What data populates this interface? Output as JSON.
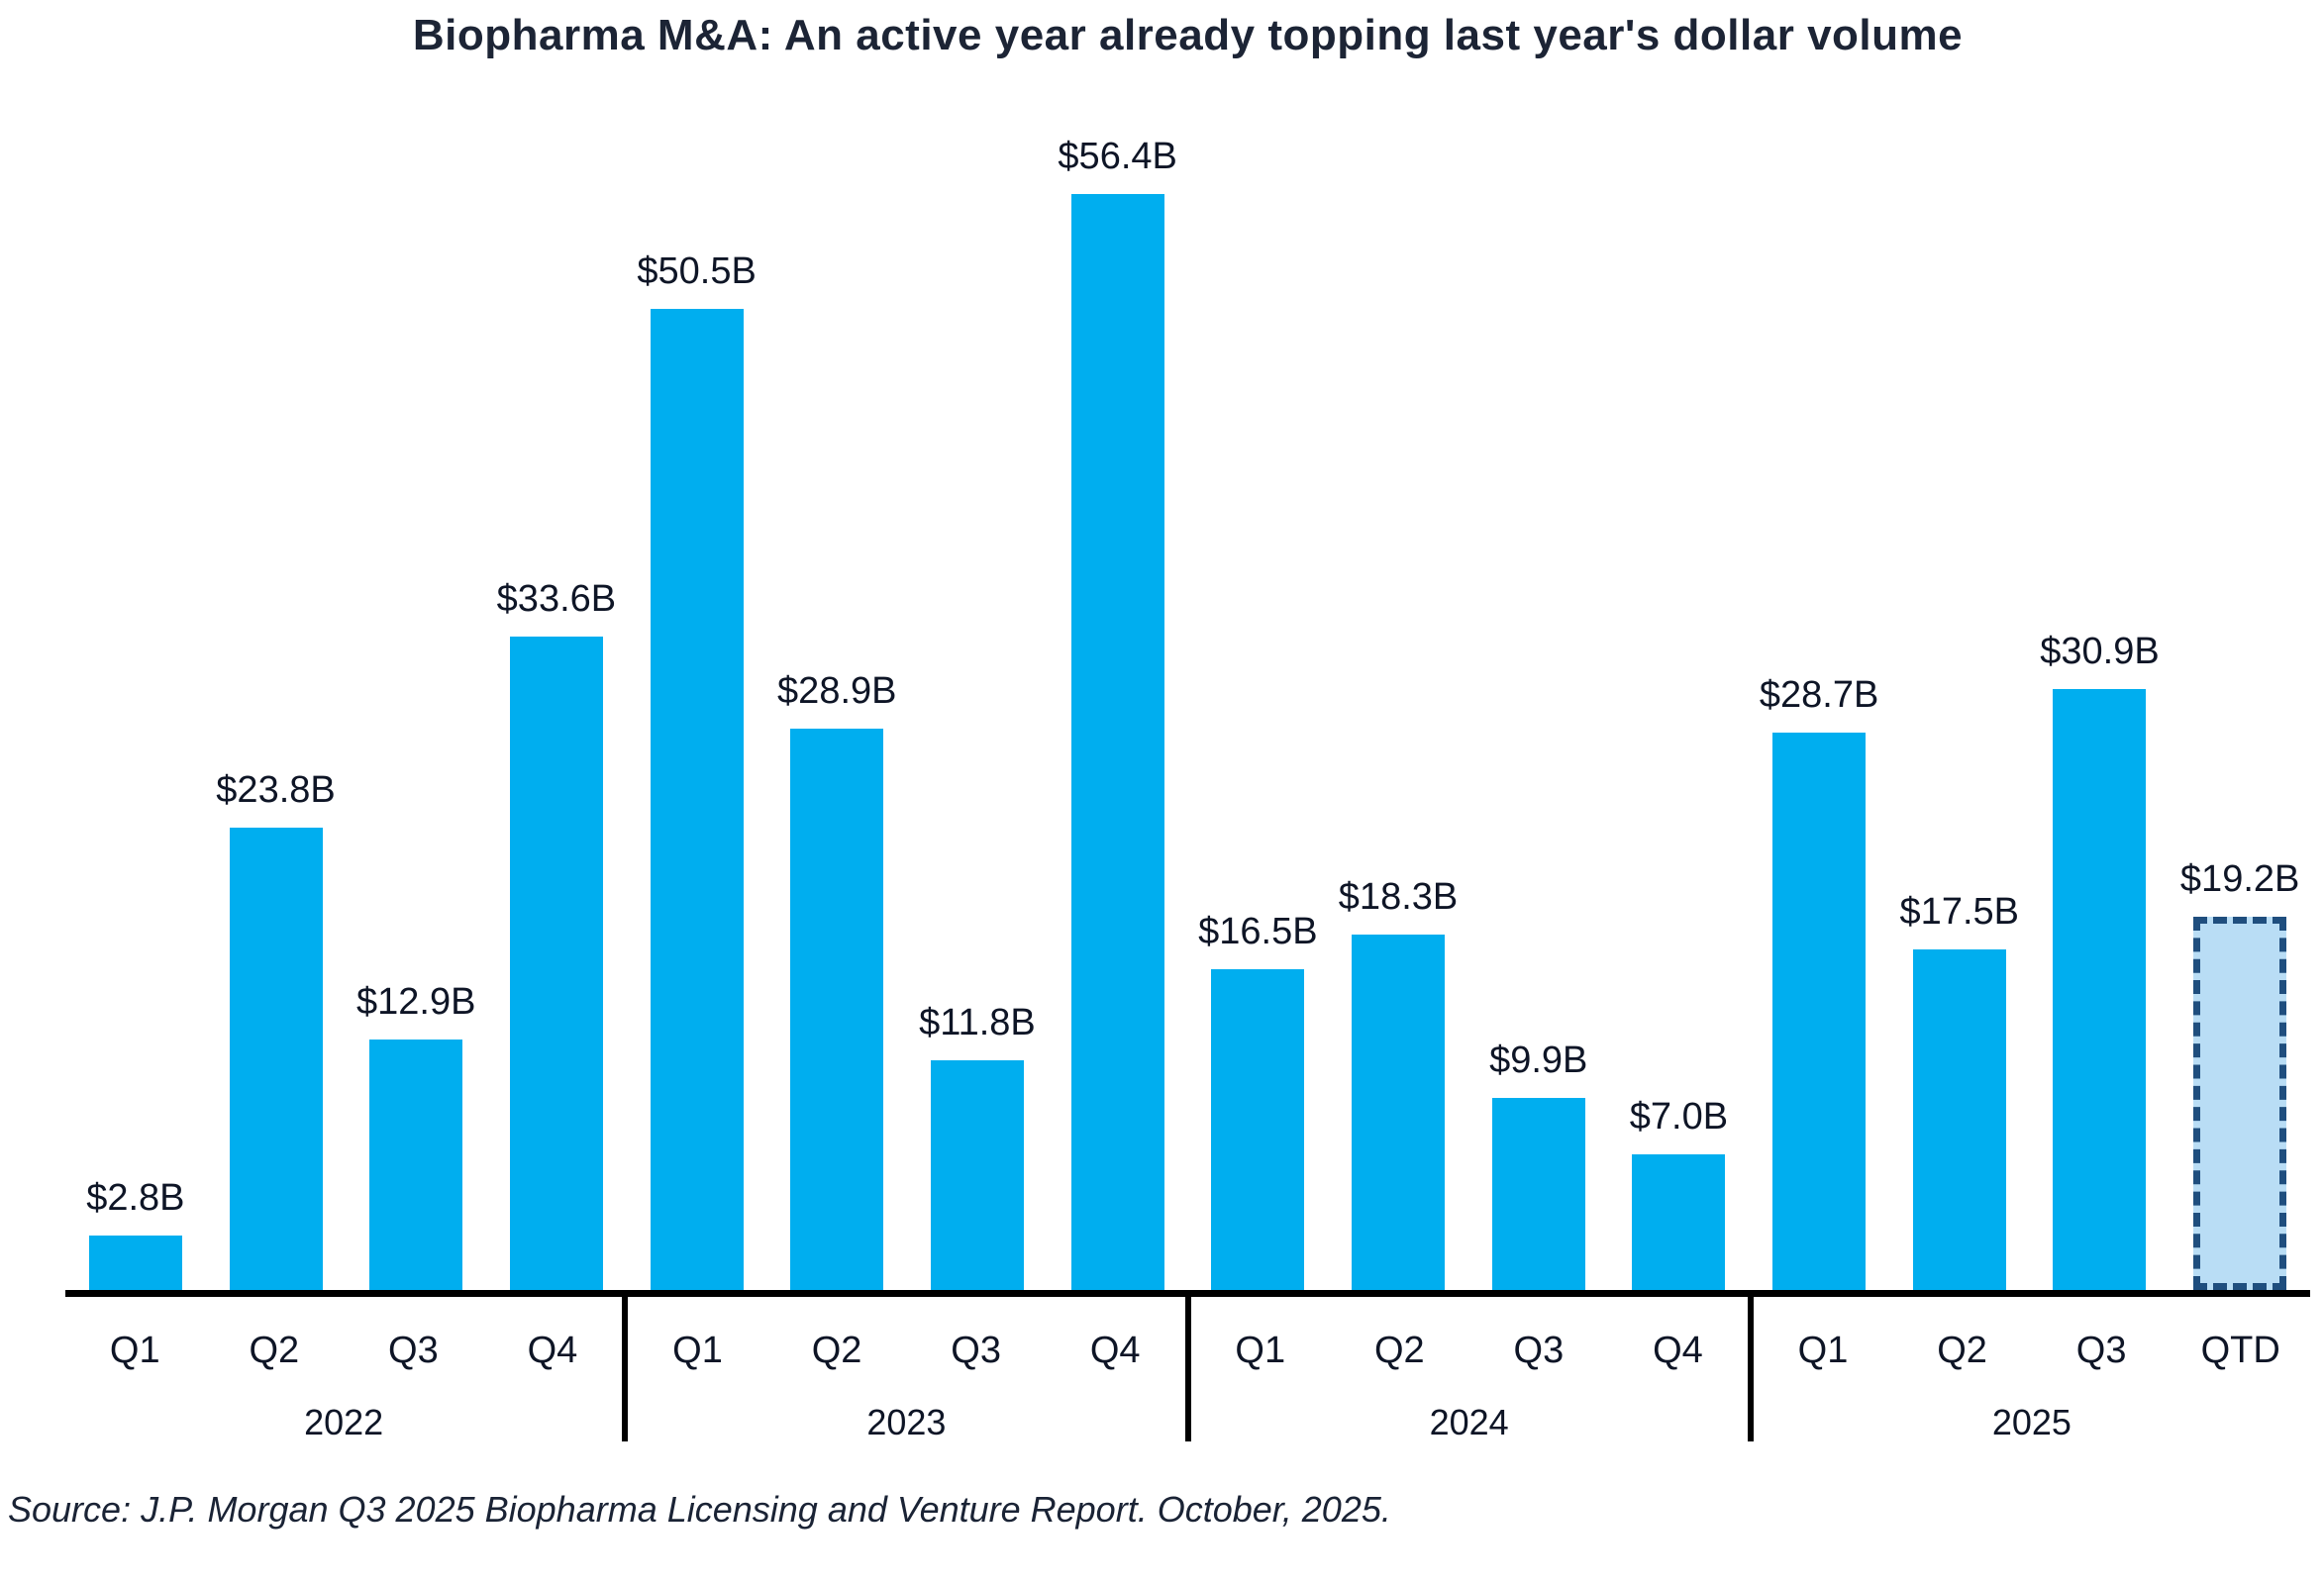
{
  "title": "Biopharma M&A: An active year already topping last year's dollar volume",
  "source": "Source: J.P. Morgan Q3 2025 Biopharma Licensing and Venture Report. October, 2025.",
  "colors": {
    "bar": "#00AEEF",
    "qtd_fill": "#B9DDF5",
    "qtd_border": "#1F4E7E",
    "axis": "#000000",
    "text": "#0E1526"
  },
  "chart_data": {
    "type": "bar",
    "title": "Biopharma M&A: An active year already topping last year's dollar volume",
    "unit": "USD billions",
    "ylabel": "",
    "xlabel": "",
    "ylim": [
      0,
      60
    ],
    "grid": false,
    "legend": "none",
    "annotations": "QTD bar drawn with dashed navy outline and light blue fill; vertical black dividers separate year groups below the x-axis",
    "groups": [
      {
        "year": "2022",
        "bars": [
          {
            "quarter": "Q1",
            "label": "$2.8B",
            "value": 2.8
          },
          {
            "quarter": "Q2",
            "label": "$23.8B",
            "value": 23.8
          },
          {
            "quarter": "Q3",
            "label": "$12.9B",
            "value": 12.9
          },
          {
            "quarter": "Q4",
            "label": "$33.6B",
            "value": 33.6
          }
        ]
      },
      {
        "year": "2023",
        "bars": [
          {
            "quarter": "Q1",
            "label": "$50.5B",
            "value": 50.5
          },
          {
            "quarter": "Q2",
            "label": "$28.9B",
            "value": 28.9
          },
          {
            "quarter": "Q3",
            "label": "$11.8B",
            "value": 11.8
          },
          {
            "quarter": "Q4",
            "label": "$56.4B",
            "value": 56.4
          }
        ]
      },
      {
        "year": "2024",
        "bars": [
          {
            "quarter": "Q1",
            "label": "$16.5B",
            "value": 16.5
          },
          {
            "quarter": "Q2",
            "label": "$18.3B",
            "value": 18.3
          },
          {
            "quarter": "Q3",
            "label": "$9.9B",
            "value": 9.9
          },
          {
            "quarter": "Q4",
            "label": "$7.0B",
            "value": 7.0
          }
        ]
      },
      {
        "year": "2025",
        "bars": [
          {
            "quarter": "Q1",
            "label": "$28.7B",
            "value": 28.7
          },
          {
            "quarter": "Q2",
            "label": "$17.5B",
            "value": 17.5
          },
          {
            "quarter": "Q3",
            "label": "$30.9B",
            "value": 30.9
          },
          {
            "quarter": "QTD",
            "label": "$19.2B",
            "value": 19.2,
            "style": "qtd-dashed"
          }
        ]
      }
    ]
  }
}
